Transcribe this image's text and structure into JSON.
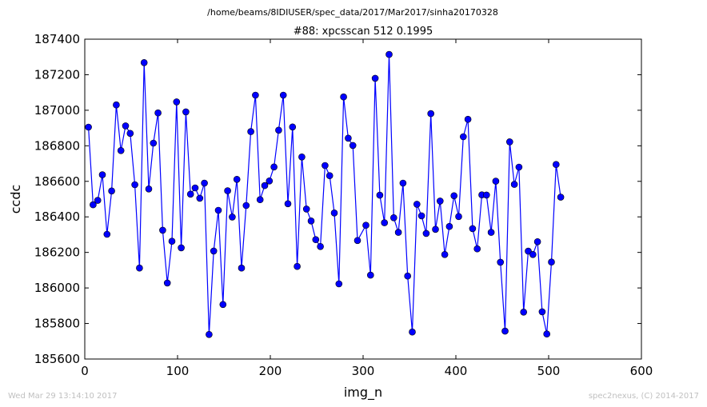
{
  "figure": {
    "suptitle": "/home/beams/8IDIUSER/spec_data/2017/Mar2017/sinha20170328",
    "footer_left": "Wed Mar 29 13:14:10 2017",
    "footer_right": "spec2nexus, (C) 2014-2017"
  },
  "chart_data": {
    "type": "line",
    "title": "#88: xpcsscan 512 0.1995",
    "xlabel": "img_n",
    "ylabel": "ccdc",
    "xlim": [
      0,
      600
    ],
    "ylim": [
      185600,
      187400
    ],
    "xticks": [
      0,
      100,
      200,
      300,
      400,
      500,
      600
    ],
    "yticks": [
      185600,
      185800,
      186000,
      186200,
      186400,
      186600,
      186800,
      187000,
      187200,
      187400
    ],
    "grid": false,
    "legend": "none",
    "series_color": "#0000ff",
    "marker": "circle",
    "x": [
      4,
      9,
      14,
      19,
      24,
      29,
      34,
      39,
      44,
      49,
      54,
      59,
      64,
      69,
      74,
      79,
      84,
      89,
      94,
      99,
      104,
      109,
      114,
      119,
      124,
      129,
      134,
      139,
      144,
      149,
      154,
      159,
      164,
      169,
      174,
      179,
      184,
      189,
      194,
      199,
      204,
      209,
      214,
      219,
      224,
      229,
      234,
      239,
      244,
      249,
      254,
      259,
      264,
      269,
      274,
      279,
      284,
      289,
      294,
      303,
      308,
      313,
      318,
      323,
      328,
      333,
      338,
      343,
      348,
      353,
      358,
      363,
      368,
      373,
      378,
      383,
      388,
      393,
      398,
      403,
      408,
      413,
      418,
      423,
      428,
      433,
      438,
      443,
      448,
      453,
      458,
      463,
      468,
      473,
      478,
      483,
      488,
      493,
      498,
      503,
      508,
      513
    ],
    "y": [
      186905,
      186468,
      186493,
      186637,
      186302,
      186546,
      187030,
      186773,
      186912,
      186870,
      186581,
      186112,
      187268,
      186557,
      186815,
      186985,
      186325,
      186028,
      186263,
      187047,
      186226,
      186991,
      186528,
      186563,
      186505,
      186590,
      185738,
      186208,
      186437,
      185907,
      186547,
      186399,
      186611,
      186112,
      186464,
      186880,
      187085,
      186497,
      186576,
      186602,
      186681,
      186888,
      187085,
      186474,
      186906,
      186121,
      186737,
      186444,
      186377,
      186272,
      186233,
      186689,
      186632,
      186422,
      186023,
      187075,
      186843,
      186802,
      186267,
      186353,
      186072,
      187180,
      186522,
      186367,
      187314,
      186395,
      186313,
      186590,
      186067,
      185752,
      186471,
      186406,
      186307,
      186981,
      186330,
      186489,
      186188,
      186346,
      186519,
      186402,
      186851,
      186949,
      186334,
      186220,
      186524,
      186523,
      186313,
      186601,
      186145,
      185757,
      186822,
      186583,
      186680,
      185864,
      186207,
      186188,
      186260,
      185866,
      185741,
      186146,
      186695,
      186511
    ]
  }
}
